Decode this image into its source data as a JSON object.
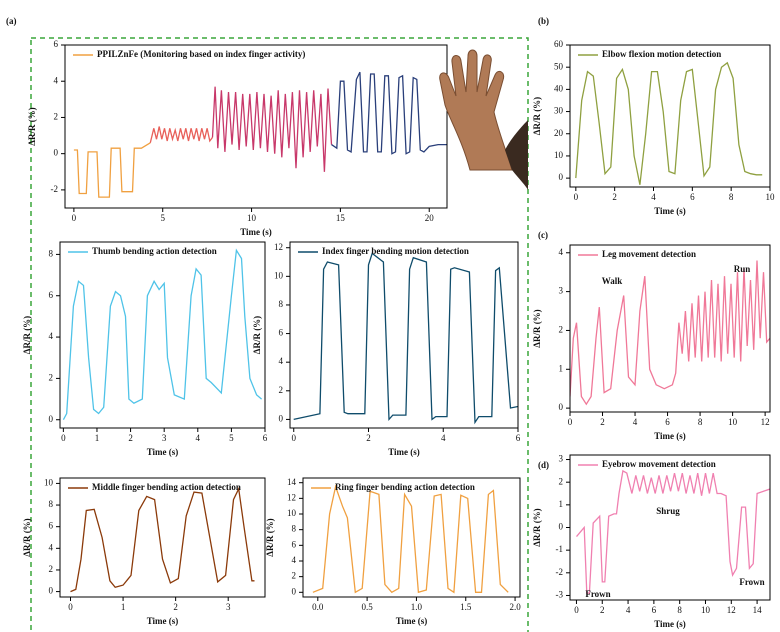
{
  "chart_data": [
    {
      "type": "line",
      "panel_label": "(a)",
      "x_label": "Time (s)",
      "y_label": "ΔR/R (%)",
      "xlim": [
        -0.5,
        21
      ],
      "ylim": [
        -3,
        6
      ],
      "xticks": [
        0,
        5,
        10,
        15,
        20
      ],
      "yticks": [
        -2,
        0,
        2,
        4,
        6
      ],
      "series": [
        {
          "name": "PPILZnFe (Monitoring based on index finger activity)",
          "color": "#f0a040",
          "x": [
            0,
            0.2,
            0.3,
            0.7,
            0.8,
            1.3,
            1.4,
            2.0,
            2.1,
            2.6,
            2.7,
            3.3,
            3.4,
            3.8,
            4.3
          ],
          "values": [
            0.2,
            0.2,
            -2.2,
            -2.2,
            0.1,
            0.1,
            -2.4,
            -2.4,
            0.3,
            0.3,
            -2.1,
            -2.1,
            0.3,
            0.3,
            0.6
          ]
        },
        {
          "color": "#e8605a",
          "x": [
            4.3,
            4.5,
            4.65,
            4.8,
            4.95,
            5.1,
            5.25,
            5.4,
            5.55,
            5.7,
            5.85,
            6.0,
            6.15,
            6.3,
            6.45,
            6.6,
            6.75,
            6.9,
            7.05,
            7.2,
            7.35,
            7.5,
            7.65,
            7.8
          ],
          "values": [
            0.6,
            1.4,
            0.8,
            1.5,
            0.8,
            1.4,
            0.7,
            1.4,
            0.8,
            1.3,
            0.7,
            1.4,
            0.8,
            1.4,
            0.7,
            1.4,
            0.8,
            1.4,
            0.7,
            1.4,
            0.8,
            1.4,
            0.7,
            0.9
          ]
        },
        {
          "color": "#c8386a",
          "x": [
            7.8,
            7.95,
            8.1,
            8.3,
            8.5,
            8.7,
            8.9,
            9.1,
            9.3,
            9.5,
            9.7,
            9.9,
            10.1,
            10.3,
            10.5,
            10.7,
            10.9,
            11.1,
            11.3,
            11.5,
            11.7,
            11.9,
            12.1,
            12.3,
            12.5,
            12.7,
            12.9,
            13.1,
            13.3,
            13.5,
            13.7,
            13.9,
            14.1,
            14.3,
            14.5
          ],
          "values": [
            0.9,
            3.7,
            0.3,
            3.5,
            0.1,
            3.4,
            0.5,
            3.4,
            0.2,
            3.3,
            0.4,
            3.3,
            0.2,
            3.4,
            0.3,
            3.3,
            0.1,
            3.2,
            0.0,
            3.5,
            -0.2,
            3.3,
            0.3,
            3.4,
            -0.8,
            3.5,
            -0.2,
            3.4,
            0.1,
            3.5,
            0.4,
            3.3,
            -1.0,
            3.6,
            0.5
          ]
        },
        {
          "color": "#2a3f7a",
          "x": [
            14.5,
            14.8,
            15.0,
            15.2,
            15.4,
            15.6,
            15.9,
            16.1,
            16.3,
            16.5,
            16.7,
            16.9,
            17.1,
            17.3,
            17.5,
            17.7,
            17.9,
            18.1,
            18.3,
            18.5,
            18.7,
            18.9,
            19.1,
            19.3,
            19.5,
            19.7,
            20.0,
            20.5,
            21.0
          ],
          "values": [
            0.5,
            0.3,
            4.0,
            4.0,
            0.2,
            0.1,
            4.1,
            4.5,
            0.1,
            0.1,
            4.4,
            4.4,
            0.1,
            0.1,
            4.3,
            4.3,
            0.0,
            0.1,
            4.2,
            4.3,
            0.0,
            0.1,
            4.2,
            4.1,
            0.2,
            0.1,
            0.4,
            0.5,
            0.5
          ]
        }
      ]
    },
    {
      "type": "line",
      "x_label": "Time (s)",
      "y_label": "ΔR/R (%)",
      "xlim": [
        -0.1,
        6
      ],
      "ylim": [
        -0.4,
        8.6
      ],
      "xticks": [
        0,
        1,
        2,
        3,
        4,
        5,
        6
      ],
      "yticks": [
        0,
        2,
        4,
        6,
        8
      ],
      "series": [
        {
          "name": "Thumb bending action detection",
          "color": "#4fc3e8",
          "x": [
            0,
            0.1,
            0.3,
            0.45,
            0.6,
            0.75,
            0.9,
            1.05,
            1.2,
            1.4,
            1.55,
            1.7,
            1.85,
            1.95,
            2.1,
            2.35,
            2.5,
            2.7,
            2.85,
            3.0,
            3.1,
            3.3,
            3.6,
            3.8,
            3.95,
            4.1,
            4.25,
            4.4,
            4.7,
            5.0,
            5.15,
            5.3,
            5.4,
            5.55,
            5.75,
            5.9
          ],
          "values": [
            0,
            0.3,
            5.5,
            6.7,
            6.5,
            3,
            0.5,
            0.3,
            0.6,
            5.5,
            6.2,
            6.0,
            5,
            1,
            0.8,
            1,
            6,
            6.7,
            6.3,
            6.6,
            3,
            1.2,
            1.0,
            6,
            7.3,
            7.0,
            2,
            1.8,
            1.3,
            6,
            8.2,
            7.8,
            5,
            2,
            1.2,
            1.0
          ]
        }
      ]
    },
    {
      "type": "line",
      "x_label": "Time (s)",
      "y_label": "ΔR/R (%)",
      "xlim": [
        -0.1,
        6
      ],
      "ylim": [
        -0.6,
        12.4
      ],
      "xticks": [
        0,
        2,
        4,
        6
      ],
      "yticks": [
        0,
        2,
        4,
        6,
        8,
        10,
        12
      ],
      "series": [
        {
          "name": "Index finger bending motion detection",
          "color": "#0f4c6b",
          "x": [
            0,
            0.7,
            0.8,
            0.9,
            1.2,
            1.35,
            1.45,
            1.9,
            2.0,
            2.1,
            2.4,
            2.55,
            2.65,
            3.0,
            3.1,
            3.2,
            3.55,
            3.7,
            3.8,
            4.1,
            4.2,
            4.3,
            4.7,
            4.85,
            4.95,
            5.3,
            5.4,
            5.5,
            5.8,
            6.0
          ],
          "values": [
            0,
            0.4,
            10.5,
            11,
            10.8,
            0.5,
            0.4,
            0.4,
            10.8,
            11.6,
            11,
            0,
            0.3,
            0.3,
            10.5,
            11.3,
            11,
            0,
            0.2,
            0.2,
            10.5,
            10.6,
            10.3,
            -0.2,
            0.2,
            0.2,
            10.4,
            10.6,
            0.8,
            0.9
          ]
        }
      ]
    },
    {
      "type": "line",
      "x_label": "Time (s)",
      "y_label": "ΔR/R (%)",
      "xlim": [
        -0.2,
        3.7
      ],
      "ylim": [
        -0.5,
        10.5
      ],
      "xticks": [
        0,
        1,
        2,
        3
      ],
      "yticks": [
        0,
        2,
        4,
        6,
        8,
        10
      ],
      "series": [
        {
          "name": "Middle finger bending action detection",
          "color": "#8b3a0a",
          "x": [
            0,
            0.1,
            0.2,
            0.3,
            0.45,
            0.6,
            0.75,
            0.85,
            1.0,
            1.15,
            1.3,
            1.45,
            1.6,
            1.75,
            1.9,
            2.05,
            2.2,
            2.35,
            2.5,
            2.65,
            2.8,
            2.95,
            3.1,
            3.2,
            3.3,
            3.45,
            3.5
          ],
          "values": [
            0,
            0.2,
            3,
            7.5,
            7.6,
            5,
            1,
            0.4,
            0.6,
            1.5,
            7.5,
            8.8,
            8.5,
            3,
            0.8,
            1.2,
            7,
            9.2,
            9.1,
            5,
            0.9,
            1.5,
            8.5,
            9.5,
            6,
            1,
            1
          ]
        }
      ]
    },
    {
      "type": "line",
      "x_label": "Time (s)",
      "y_label": "ΔR/R (%)",
      "xlim": [
        -0.15,
        2.05
      ],
      "ylim": [
        -0.6,
        14.6
      ],
      "xticks": [
        {
          "value": 0,
          "label": "0.0"
        },
        0.5,
        {
          "value": 1,
          "label": "1.0"
        },
        1.5,
        {
          "value": 2,
          "label": "2.0"
        }
      ],
      "yticks": [
        0,
        2,
        4,
        6,
        8,
        10,
        12,
        14
      ],
      "series": [
        {
          "name": "Ring finger bending action detection",
          "color": "#f0a040",
          "x": [
            -0.05,
            0.05,
            0.12,
            0.18,
            0.25,
            0.3,
            0.38,
            0.45,
            0.53,
            0.62,
            0.68,
            0.75,
            0.82,
            0.88,
            0.95,
            1.02,
            1.1,
            1.18,
            1.25,
            1.32,
            1.38,
            1.45,
            1.52,
            1.6,
            1.66,
            1.73,
            1.78,
            1.85,
            1.93
          ],
          "values": [
            0,
            0.5,
            10,
            13.5,
            11,
            9.5,
            0,
            0.5,
            12.9,
            12.5,
            1,
            0,
            0.5,
            12.5,
            11,
            0,
            0.3,
            12.3,
            12.5,
            0.5,
            0,
            12.4,
            12,
            0,
            0,
            12.5,
            13,
            1,
            0
          ]
        }
      ]
    },
    {
      "type": "line",
      "panel_label": "(b)",
      "x_label": "Time (s)",
      "y_label": "ΔR/R (%)",
      "xlim": [
        -0.3,
        10
      ],
      "ylim": [
        -4,
        60
      ],
      "xticks": [
        0,
        2,
        4,
        6,
        8,
        10
      ],
      "yticks": [
        0,
        10,
        20,
        30,
        40,
        50,
        60
      ],
      "series": [
        {
          "name": "Elbow flexion motion detection",
          "color": "#8fa040",
          "x": [
            0,
            0.3,
            0.6,
            0.9,
            1.2,
            1.5,
            1.8,
            2.1,
            2.4,
            2.7,
            3.0,
            3.3,
            3.6,
            3.9,
            4.2,
            4.5,
            4.8,
            5.1,
            5.4,
            5.7,
            6.0,
            6.3,
            6.6,
            6.9,
            7.2,
            7.5,
            7.8,
            8.1,
            8.4,
            8.7,
            9.0,
            9.3,
            9.6
          ],
          "values": [
            0,
            35,
            48,
            46,
            25,
            2,
            5,
            45,
            49,
            40,
            10,
            -3,
            20,
            48,
            48,
            30,
            3,
            2,
            35,
            48,
            49,
            25,
            1,
            5,
            40,
            50,
            52,
            45,
            15,
            3,
            2,
            1.5,
            1.5
          ]
        }
      ]
    },
    {
      "type": "line",
      "panel_label": "(c)",
      "x_label": "Time (s)",
      "y_label": "ΔR/R (%)",
      "xlim": [
        0,
        12.3
      ],
      "ylim": [
        -0.1,
        4.2
      ],
      "xticks": [
        0,
        2,
        4,
        6,
        8,
        10,
        12
      ],
      "yticks": [
        0,
        1,
        2,
        3,
        4
      ],
      "annotations": [
        "Walk",
        "Run"
      ],
      "series": [
        {
          "name": "Leg movement detection",
          "color": "#f07898",
          "x": [
            0,
            0.2,
            0.4,
            0.7,
            1.0,
            1.3,
            1.6,
            1.8,
            2.1,
            2.5,
            2.9,
            3.3,
            3.6,
            4.0,
            4.3,
            4.6,
            4.9,
            5.3,
            5.8,
            6.3,
            6.5,
            6.7,
            6.9,
            7.1,
            7.3,
            7.5,
            7.7,
            7.9,
            8.1,
            8.3,
            8.5,
            8.7,
            8.9,
            9.1,
            9.3,
            9.5,
            9.7,
            9.9,
            10.1,
            10.3,
            10.5,
            10.7,
            10.9,
            11.1,
            11.3,
            11.5,
            11.7,
            11.9,
            12.1,
            12.3
          ],
          "values": [
            0.3,
            1.8,
            2.2,
            0.3,
            0.1,
            0.3,
            1.8,
            2.6,
            0.4,
            0.5,
            2.0,
            2.9,
            0.8,
            0.6,
            2.5,
            3.4,
            1.0,
            0.6,
            0.5,
            0.6,
            0.9,
            2.2,
            1.4,
            2.5,
            1.2,
            2.7,
            1.3,
            2.9,
            1.2,
            3.0,
            1.3,
            3.3,
            1.3,
            3.2,
            1.2,
            3.4,
            1.4,
            3.2,
            1.3,
            3.5,
            1.2,
            3.6,
            1.6,
            3.3,
            1.5,
            3.8,
            1.8,
            3.5,
            1.7,
            1.8
          ]
        }
      ]
    },
    {
      "type": "line",
      "panel_label": "(d)",
      "x_label": "Time (s)",
      "y_label": "ΔR/R (%)",
      "xlim": [
        -0.5,
        15
      ],
      "ylim": [
        -3.2,
        3.2
      ],
      "xticks": [
        0,
        2,
        4,
        6,
        8,
        10,
        12,
        14
      ],
      "yticks": [
        -3,
        -2,
        -1,
        0,
        1,
        2,
        3
      ],
      "annotations": [
        "Shrug",
        "Frown",
        "Frown"
      ],
      "series": [
        {
          "name": "Eyebrow movement detection",
          "color": "#f080b0",
          "x": [
            0,
            0.6,
            0.8,
            1.0,
            1.3,
            1.8,
            2.0,
            2.2,
            2.5,
            2.9,
            3.1,
            3.3,
            3.6,
            3.9,
            4.3,
            4.6,
            4.9,
            5.2,
            5.5,
            5.8,
            6.1,
            6.4,
            6.7,
            7.0,
            7.3,
            7.6,
            7.9,
            8.2,
            8.5,
            8.8,
            9.1,
            9.4,
            9.7,
            10.0,
            10.3,
            10.6,
            10.9,
            11.2,
            11.6,
            11.9,
            12.1,
            12.4,
            12.8,
            13.1,
            13.4,
            13.7,
            14.0,
            14.5,
            15.0
          ],
          "values": [
            -0.4,
            0,
            -2.9,
            -2.9,
            0.2,
            0.5,
            -2.4,
            -2.4,
            0.5,
            0.6,
            0.6,
            1.5,
            2.5,
            2.4,
            1.5,
            2.3,
            1.6,
            2.3,
            1.5,
            2.2,
            1.5,
            2.3,
            1.5,
            2.3,
            1.6,
            2.4,
            1.6,
            2.4,
            1.5,
            2.3,
            1.5,
            2.4,
            1.4,
            2.4,
            1.5,
            2.4,
            1.5,
            1.5,
            1.4,
            -1.5,
            -2.1,
            -1.8,
            0.9,
            0.9,
            -1.8,
            -1.6,
            1.5,
            1.6,
            1.7
          ]
        }
      ]
    }
  ]
}
